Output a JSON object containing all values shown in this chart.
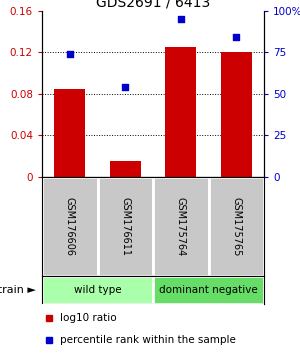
{
  "title": "GDS2691 / 6413",
  "samples": [
    "GSM176606",
    "GSM176611",
    "GSM175764",
    "GSM175765"
  ],
  "log10_ratio": [
    0.085,
    0.015,
    0.125,
    0.12
  ],
  "percentile_rank": [
    0.74,
    0.54,
    0.95,
    0.84
  ],
  "bar_color": "#cc0000",
  "dot_color": "#0000cc",
  "ylim_left": [
    0,
    0.16
  ],
  "ylim_right": [
    0,
    1.0
  ],
  "yticks_left": [
    0,
    0.04,
    0.08,
    0.12,
    0.16
  ],
  "yticks_right": [
    0,
    0.25,
    0.5,
    0.75,
    1.0
  ],
  "ytick_labels_right": [
    "0",
    "25",
    "50",
    "75",
    "100%"
  ],
  "ytick_labels_left": [
    "0",
    "0.04",
    "0.08",
    "0.12",
    "0.16"
  ],
  "gridlines_at": [
    0.04,
    0.08,
    0.12
  ],
  "groups": [
    {
      "label": "wild type",
      "samples": [
        0,
        1
      ],
      "color": "#aaffaa"
    },
    {
      "label": "dominant negative",
      "samples": [
        2,
        3
      ],
      "color": "#66dd66"
    }
  ],
  "strain_label": "strain",
  "legend_ratio_label": "log10 ratio",
  "legend_pct_label": "percentile rank within the sample",
  "bg_color": "#ffffff",
  "sample_box_color": "#c8c8c8",
  "bar_width": 0.55
}
